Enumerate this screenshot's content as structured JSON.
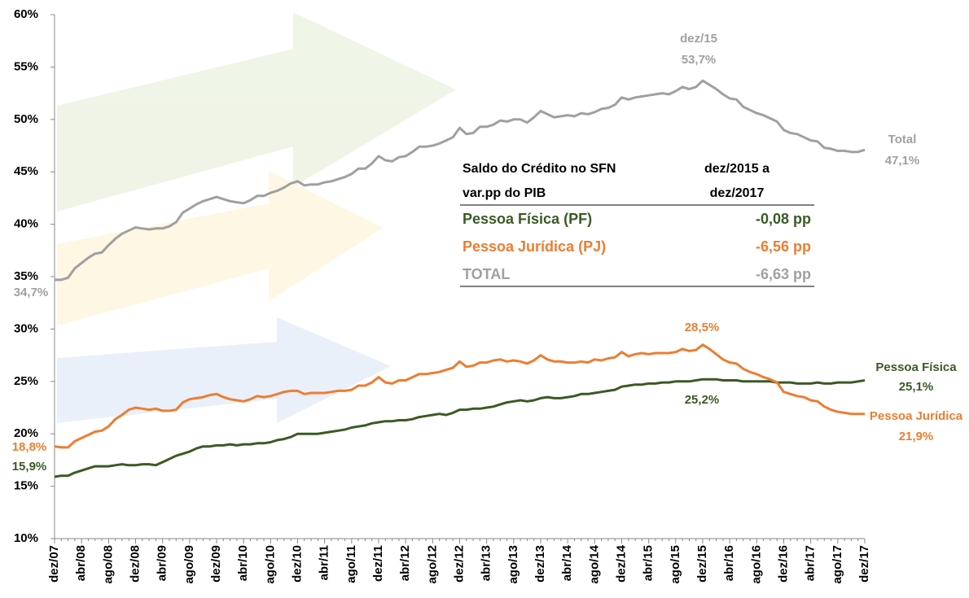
{
  "chart_data": {
    "type": "line",
    "categories": [
      "dez/07",
      null,
      null,
      null,
      "abr/08",
      null,
      null,
      null,
      "ago/08",
      null,
      null,
      null,
      "dez/08",
      null,
      null,
      null,
      "abr/09",
      null,
      null,
      null,
      "ago/09",
      null,
      null,
      null,
      "dez/09",
      null,
      null,
      null,
      "abr/10",
      null,
      null,
      null,
      "ago/10",
      null,
      null,
      null,
      "dez/10",
      null,
      null,
      null,
      "abr/11",
      null,
      null,
      null,
      "ago/11",
      null,
      null,
      null,
      "dez/11",
      null,
      null,
      null,
      "abr/12",
      null,
      null,
      null,
      "ago/12",
      null,
      null,
      null,
      "dez/12",
      null,
      null,
      null,
      "abr/13",
      null,
      null,
      null,
      "ago/13",
      null,
      null,
      null,
      "dez/13",
      null,
      null,
      null,
      "abr/14",
      null,
      null,
      null,
      "ago/14",
      null,
      null,
      null,
      "dez/14",
      null,
      null,
      null,
      "abr/15",
      null,
      null,
      null,
      "ago/15",
      null,
      null,
      null,
      "dez/15",
      null,
      null,
      null,
      "abr/16",
      null,
      null,
      null,
      "ago/16",
      null,
      null,
      null,
      "dez/16",
      null,
      null,
      null,
      "abr/17",
      null,
      null,
      null,
      "ago/17",
      null,
      null,
      null,
      "dez/17"
    ],
    "series": [
      {
        "name": "Total",
        "color": "#a0a0a0",
        "values": [
          34.7,
          34.7,
          34.9,
          35.8,
          36.3,
          36.8,
          37.2,
          37.3,
          38.0,
          38.6,
          39.1,
          39.4,
          39.7,
          39.6,
          39.5,
          39.6,
          39.6,
          39.8,
          40.2,
          41.1,
          41.5,
          41.9,
          42.2,
          42.4,
          42.6,
          42.4,
          42.2,
          42.1,
          42.0,
          42.3,
          42.7,
          42.7,
          43.0,
          43.2,
          43.5,
          43.9,
          44.1,
          43.7,
          43.8,
          43.8,
          44.0,
          44.1,
          44.3,
          44.5,
          44.8,
          45.3,
          45.3,
          45.8,
          46.5,
          46.1,
          46.0,
          46.4,
          46.5,
          46.9,
          47.4,
          47.4,
          47.5,
          47.7,
          48.0,
          48.3,
          49.2,
          48.6,
          48.7,
          49.3,
          49.3,
          49.5,
          49.9,
          49.8,
          50.0,
          50.0,
          49.7,
          50.2,
          50.8,
          50.5,
          50.2,
          50.3,
          50.4,
          50.3,
          50.6,
          50.5,
          50.7,
          51.0,
          51.1,
          51.4,
          52.1,
          51.9,
          52.1,
          52.2,
          52.3,
          52.4,
          52.5,
          52.4,
          52.7,
          53.1,
          52.9,
          53.1,
          53.7,
          53.3,
          52.9,
          52.4,
          52.0,
          51.9,
          51.2,
          50.9,
          50.6,
          50.4,
          50.1,
          49.8,
          49.0,
          48.7,
          48.6,
          48.3,
          48.0,
          47.9,
          47.3,
          47.2,
          47.0,
          47.0,
          46.9,
          46.9,
          47.1
        ]
      },
      {
        "name": "Pessoa Física",
        "color": "#3a5a24",
        "values": [
          15.9,
          16.0,
          16.0,
          16.3,
          16.5,
          16.7,
          16.9,
          16.9,
          16.9,
          17.0,
          17.1,
          17.0,
          17.0,
          17.1,
          17.1,
          17.0,
          17.3,
          17.6,
          17.9,
          18.1,
          18.3,
          18.6,
          18.8,
          18.8,
          18.9,
          18.9,
          19.0,
          18.9,
          19.0,
          19.0,
          19.1,
          19.1,
          19.2,
          19.4,
          19.5,
          19.7,
          20.0,
          20.0,
          20.0,
          20.0,
          20.1,
          20.2,
          20.3,
          20.4,
          20.6,
          20.7,
          20.8,
          21.0,
          21.1,
          21.2,
          21.2,
          21.3,
          21.3,
          21.4,
          21.6,
          21.7,
          21.8,
          21.9,
          21.8,
          22.0,
          22.3,
          22.3,
          22.4,
          22.4,
          22.5,
          22.6,
          22.8,
          23.0,
          23.1,
          23.2,
          23.1,
          23.2,
          23.4,
          23.5,
          23.4,
          23.4,
          23.5,
          23.6,
          23.8,
          23.8,
          23.9,
          24.0,
          24.1,
          24.2,
          24.5,
          24.6,
          24.7,
          24.7,
          24.8,
          24.8,
          24.9,
          24.9,
          25.0,
          25.0,
          25.0,
          25.1,
          25.2,
          25.2,
          25.2,
          25.1,
          25.1,
          25.1,
          25.0,
          25.0,
          25.0,
          25.0,
          25.0,
          24.9,
          24.9,
          24.9,
          24.8,
          24.8,
          24.8,
          24.9,
          24.8,
          24.8,
          24.9,
          24.9,
          24.9,
          25.0,
          25.1
        ]
      },
      {
        "name": "Pessoa Jurídica",
        "color": "#ed7d31",
        "values": [
          18.8,
          18.7,
          18.7,
          19.3,
          19.6,
          19.9,
          20.2,
          20.3,
          20.7,
          21.4,
          21.8,
          22.3,
          22.5,
          22.4,
          22.3,
          22.4,
          22.2,
          22.2,
          22.3,
          23.0,
          23.3,
          23.4,
          23.5,
          23.7,
          23.8,
          23.5,
          23.3,
          23.2,
          23.1,
          23.3,
          23.6,
          23.5,
          23.6,
          23.8,
          24.0,
          24.1,
          24.1,
          23.8,
          23.9,
          23.9,
          23.9,
          24.0,
          24.1,
          24.1,
          24.2,
          24.6,
          24.6,
          24.9,
          25.4,
          24.9,
          24.8,
          25.1,
          25.1,
          25.4,
          25.7,
          25.7,
          25.8,
          25.9,
          26.1,
          26.3,
          26.9,
          26.4,
          26.5,
          26.8,
          26.8,
          27.0,
          27.1,
          26.9,
          27.0,
          26.9,
          26.7,
          27.0,
          27.5,
          27.1,
          26.9,
          26.9,
          26.8,
          26.8,
          26.9,
          26.8,
          27.1,
          27.0,
          27.2,
          27.3,
          27.8,
          27.4,
          27.6,
          27.7,
          27.6,
          27.7,
          27.7,
          27.7,
          27.8,
          28.1,
          27.9,
          28.0,
          28.5,
          28.1,
          27.6,
          27.1,
          26.8,
          26.7,
          26.2,
          25.9,
          25.7,
          25.4,
          25.2,
          24.9,
          24.0,
          23.8,
          23.6,
          23.5,
          23.2,
          23.1,
          22.6,
          22.3,
          22.1,
          22.0,
          21.9,
          21.9,
          21.9
        ]
      }
    ],
    "ylim": [
      10,
      60
    ],
    "yticks": [
      {
        "value": 10,
        "label": "10%"
      },
      {
        "value": 15,
        "label": "15%"
      },
      {
        "value": 20,
        "label": "20%"
      },
      {
        "value": 25,
        "label": "25%"
      },
      {
        "value": 30,
        "label": "30%"
      },
      {
        "value": 35,
        "label": "35%"
      },
      {
        "value": 40,
        "label": "40%"
      },
      {
        "value": 45,
        "label": "45%"
      },
      {
        "value": 50,
        "label": "50%"
      },
      {
        "value": 55,
        "label": "55%"
      },
      {
        "value": 60,
        "label": "60%"
      }
    ],
    "grid": false,
    "annotations": [
      "dez/15",
      "53,7%",
      "Total",
      "47,1%",
      "34,7%",
      "18,8%",
      "15,9%",
      "28,5%",
      "25,2%",
      "Pessoa Física",
      "25,1%",
      "Pessoa Jurídica",
      "21,9%"
    ],
    "table": {
      "header_left": [
        "Saldo do Crédito no SFN",
        "var.pp do PIB"
      ],
      "header_right": [
        "dez/2015 a",
        "dez/2017"
      ],
      "rows": [
        [
          "Pessoa Física (PF)",
          "-0,08 pp"
        ],
        [
          "Pessoa Jurídica (PJ)",
          "-6,56 pp"
        ],
        [
          "TOTAL",
          "-6,63 pp"
        ]
      ]
    }
  }
}
